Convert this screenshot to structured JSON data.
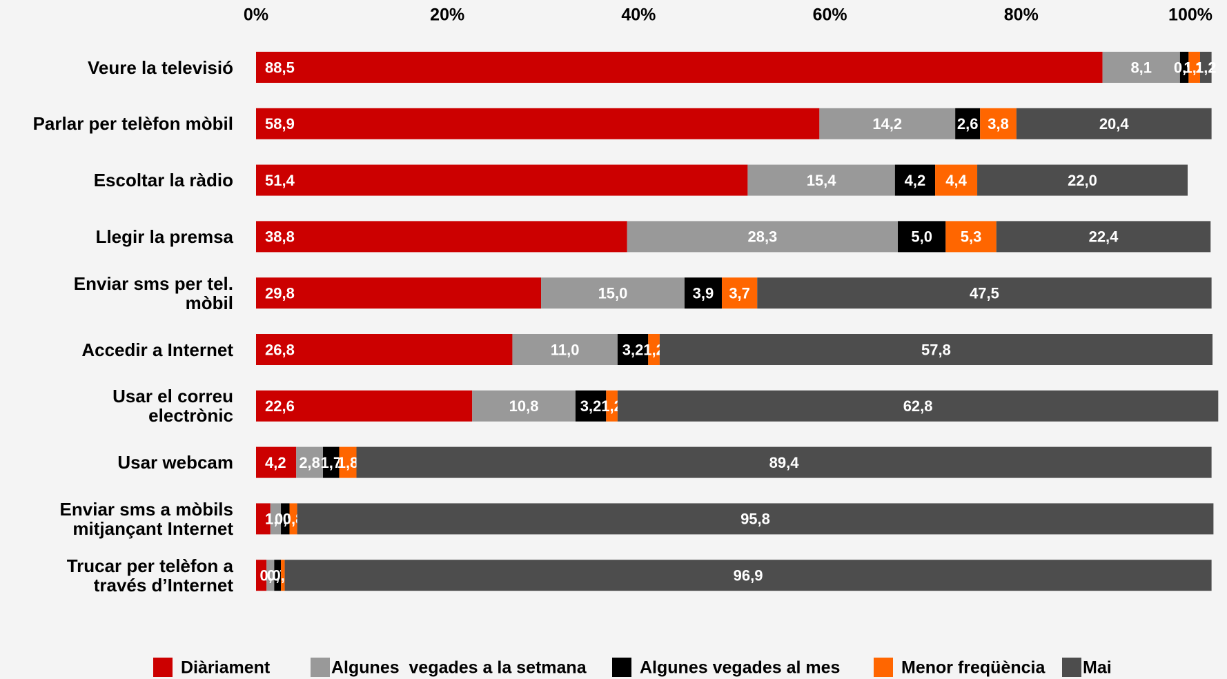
{
  "chart_data": {
    "type": "stacked_bar_horizontal",
    "categories": [
      "Veure la televisió",
      "Parlar per telèfon mòbil",
      "Escoltar la ràdio",
      "Llegir la premsa",
      "Enviar sms per tel.\nmòbil",
      "Accedir a Internet",
      "Usar el correu\nelectrònic",
      "Usar webcam",
      "Enviar sms a mòbils\nmitjançant Internet",
      "Trucar per telèfon a\ntravés d’Internet"
    ],
    "series": [
      {
        "name": "Diàriament",
        "color": "#cc0000",
        "values": [
          88.5,
          58.9,
          51.4,
          38.8,
          29.8,
          26.8,
          22.6,
          4.2,
          1.5,
          1.1
        ],
        "value_labels": [
          "88,5",
          "58,9",
          "51,4",
          "38,8",
          "29,8",
          "26,8",
          "22,6",
          "4,2",
          "1,5",
          "1,1"
        ]
      },
      {
        "name": "Algunes  vegades a la setmana",
        "color": "#999999",
        "values": [
          8.1,
          14.2,
          15.4,
          28.3,
          15.0,
          11.0,
          10.8,
          2.8,
          1.1,
          0.8
        ],
        "value_labels": [
          "8,1",
          "14,2",
          "15,4",
          "28,3",
          "15,0",
          "11,0",
          "10,8",
          "2,8",
          "1,1",
          "0,8"
        ]
      },
      {
        "name": "Algunes vegades al mes",
        "color": "#000000",
        "values": [
          0.9,
          2.6,
          4.2,
          5.0,
          3.9,
          3.2,
          3.2,
          1.7,
          0.9,
          0.7
        ],
        "value_labels": [
          "0,9",
          "2,6",
          "4,2",
          "5,0",
          "3,9",
          "3,2",
          "3,2",
          "1,7",
          "0,9",
          "0,7"
        ]
      },
      {
        "name": "Menor freqüència",
        "color": "#ff6600",
        "values": [
          1.2,
          3.8,
          4.4,
          5.3,
          3.7,
          1.2,
          1.2,
          1.8,
          0.8,
          0.4
        ],
        "value_labels": [
          "1,2",
          "3,8",
          "4,4",
          "5,3",
          "3,7",
          "1,2",
          "1,2",
          "1,8",
          "0,8",
          "0,4"
        ]
      },
      {
        "name": "Mai",
        "color": "#4d4d4d",
        "values": [
          1.2,
          20.4,
          22.0,
          22.4,
          47.5,
          57.8,
          62.8,
          89.4,
          95.8,
          96.9
        ],
        "value_labels": [
          "1,2",
          "20,4",
          "22,0",
          "22,4",
          "47,5",
          "57,8",
          "62,8",
          "89,4",
          "95,8",
          "96,9"
        ]
      }
    ],
    "xlim": [
      0,
      100
    ],
    "xticks": [
      {
        "value": 0,
        "label": "0%"
      },
      {
        "value": 20,
        "label": "20%"
      },
      {
        "value": 40,
        "label": "40%"
      },
      {
        "value": 60,
        "label": "60%"
      },
      {
        "value": 80,
        "label": "80%"
      },
      {
        "value": 100,
        "label": "100%"
      }
    ],
    "legend": "bottom"
  }
}
